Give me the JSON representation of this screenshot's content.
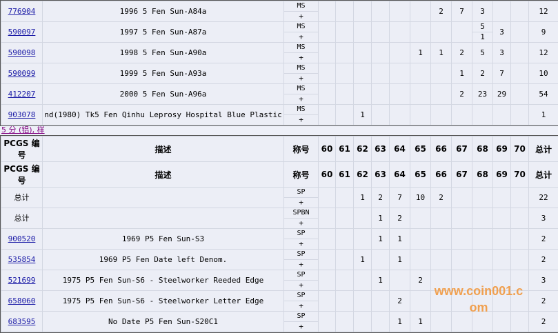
{
  "grades": [
    "60",
    "61",
    "62",
    "63",
    "64",
    "65",
    "66",
    "67",
    "68",
    "69",
    "70"
  ],
  "header": {
    "code": "PCGS 编号",
    "desc": "描述",
    "grade": "称号",
    "total": "总计"
  },
  "section_label": "5 分 (铝), 样",
  "watermark": "www.coin001.com",
  "table1": [
    {
      "code": "776904",
      "desc": "1996 5 Fen Sun-A84a",
      "grade": "MS",
      "plus": "+",
      "counts": {
        "66": "2",
        "67": "7",
        "68": "3"
      },
      "total": "12"
    },
    {
      "code": "590097",
      "desc": "1997 5 Fen Sun-A87a",
      "grade": "MS",
      "plus": "+",
      "counts": {
        "69": "3"
      },
      "split": {
        "68": [
          "5",
          "1"
        ]
      },
      "total": "9"
    },
    {
      "code": "590098",
      "desc": "1998 5 Fen Sun-A90a",
      "grade": "MS",
      "plus": "+",
      "counts": {
        "65": "1",
        "66": "1",
        "67": "2",
        "68": "5",
        "69": "3"
      },
      "total": "12"
    },
    {
      "code": "590099",
      "desc": "1999 5 Fen Sun-A93a",
      "grade": "MS",
      "plus": "+",
      "counts": {
        "67": "1",
        "68": "2",
        "69": "7"
      },
      "total": "10"
    },
    {
      "code": "412207",
      "desc": "2000 5 Fen Sun-A96a",
      "grade": "MS",
      "plus": "+",
      "counts": {
        "67": "2",
        "68": "23",
        "69": "29"
      },
      "total": "54"
    },
    {
      "code": "903078",
      "desc": "nd(1980) Tk5 Fen Qinhu Leprosy Hospital Blue Plastic",
      "grade": "MS",
      "plus": "+",
      "counts": {
        "62": "1"
      },
      "total": "1"
    }
  ],
  "table2": [
    {
      "code": "总计",
      "link": false,
      "desc": "",
      "grade": "SP",
      "plus": "+",
      "counts": {
        "62": "1",
        "63": "2",
        "64": "7",
        "65": "10",
        "66": "2"
      },
      "total": "22"
    },
    {
      "code": "总计",
      "link": false,
      "desc": "",
      "grade": "SPBN",
      "plus": "+",
      "counts": {
        "63": "1",
        "64": "2"
      },
      "total": "3"
    },
    {
      "code": "900520",
      "desc": "1969 P5 Fen Sun-S3",
      "grade": "SP",
      "plus": "+",
      "counts": {
        "63": "1",
        "64": "1"
      },
      "total": "2"
    },
    {
      "code": "535854",
      "desc": "1969 P5 Fen Date left Denom.",
      "grade": "SP",
      "plus": "+",
      "counts": {
        "62": "1",
        "64": "1"
      },
      "total": "2"
    },
    {
      "code": "521699",
      "desc": "1975 P5 Fen Sun-S6 - Steelworker Reeded Edge",
      "grade": "SP",
      "plus": "+",
      "counts": {
        "63": "1",
        "65": "2"
      },
      "total": "3"
    },
    {
      "code": "658060",
      "desc": "1975 P5 Fen Sun-S6 - Steelworker Letter Edge",
      "grade": "SP",
      "plus": "+",
      "counts": {
        "64": "2"
      },
      "total": "2"
    },
    {
      "code": "683595",
      "desc": "No Date P5 Fen Sun-S20C1",
      "grade": "SP",
      "plus": "+",
      "counts": {
        "64": "1",
        "65": "1"
      },
      "total": "2"
    }
  ]
}
